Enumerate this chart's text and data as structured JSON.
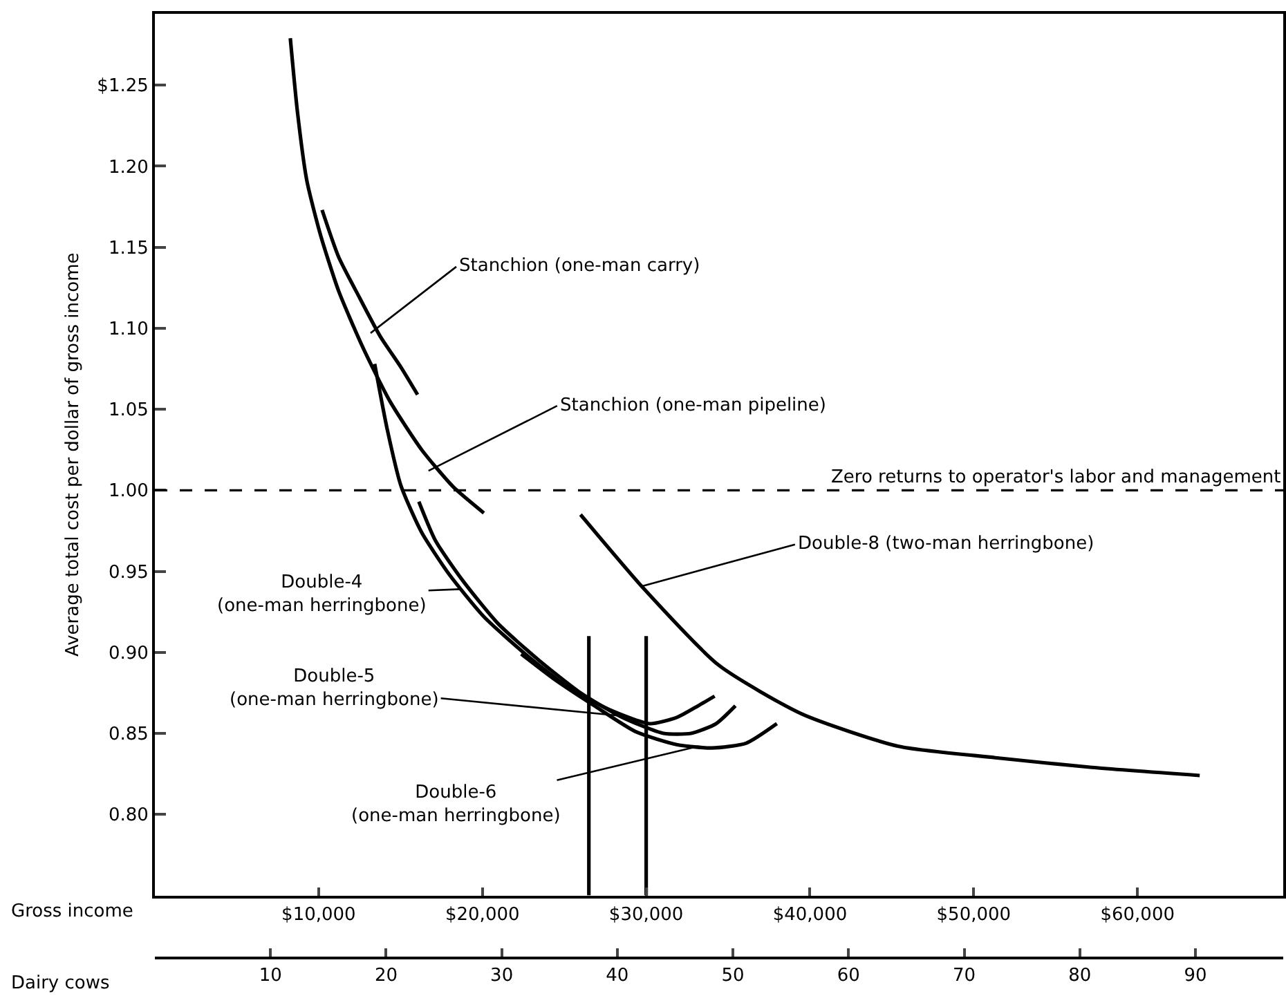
{
  "chart_data": {
    "type": "line",
    "xlabel": "Gross income",
    "x2label": "Dairy cows",
    "ylabel": "Average total cost per dollar of gross income",
    "xlim": [
      0,
      68900
    ],
    "xticks": [
      {
        "value": 10000,
        "label": "$10,000"
      },
      {
        "value": 20000,
        "label": "$20,000"
      },
      {
        "value": 30000,
        "label": "$30,000"
      },
      {
        "value": 40000,
        "label": "$40,000"
      },
      {
        "value": 50000,
        "label": "$50,000"
      },
      {
        "value": 60000,
        "label": "$60,000"
      }
    ],
    "x2lim": [
      0,
      97.6
    ],
    "x2ticks": [
      10,
      20,
      30,
      40,
      50,
      60,
      70,
      80,
      90
    ],
    "ylim": [
      0.75,
      1.294
    ],
    "yticks": [
      {
        "value": 0.8,
        "label": "0.80"
      },
      {
        "value": 0.85,
        "label": "0.85"
      },
      {
        "value": 0.9,
        "label": "0.90"
      },
      {
        "value": 0.95,
        "label": "0.95"
      },
      {
        "value": 1.0,
        "label": "1.00"
      },
      {
        "value": 1.05,
        "label": "1.05"
      },
      {
        "value": 1.1,
        "label": "1.10"
      },
      {
        "value": 1.15,
        "label": "1.15"
      },
      {
        "value": 1.2,
        "label": "1.20"
      },
      {
        "value": 1.25,
        "label": "$1.25"
      }
    ],
    "series": [
      {
        "color": "#000000",
        "x": [
          8270,
          8700,
          9280,
          10130,
          11220,
          12660,
          14350,
          16290,
          18230,
          20090
        ],
        "values": [
          1.279,
          1.234,
          1.191,
          1.157,
          1.123,
          1.089,
          1.055,
          1.025,
          1.002,
          0.986
        ]
      },
      {
        "color": "#000000",
        "x": [
          10210,
          11220,
          12490,
          13760,
          15020,
          16040
        ],
        "values": [
          1.173,
          1.144,
          1.119,
          1.095,
          1.076,
          1.059
        ]
      },
      {
        "color": "#000000",
        "x": [
          13420,
          14180,
          15020,
          16290,
          17980,
          20090,
          22620,
          25150,
          27680,
          30210,
          31900,
          33170,
          34180
        ],
        "values": [
          1.078,
          1.038,
          1.003,
          0.974,
          0.948,
          0.922,
          0.899,
          0.879,
          0.865,
          0.856,
          0.86,
          0.867,
          0.873
        ]
      },
      {
        "color": "#000000",
        "x": [
          16120,
          17130,
          18820,
          20930,
          23460,
          25990,
          28520,
          31060,
          32740,
          34270,
          35450
        ],
        "values": [
          0.993,
          0.969,
          0.944,
          0.918,
          0.895,
          0.875,
          0.86,
          0.85,
          0.85,
          0.856,
          0.867
        ]
      },
      {
        "color": "#000000",
        "x": [
          22370,
          24310,
          26840,
          29370,
          31900,
          34010,
          36120,
          37980
        ],
        "values": [
          0.899,
          0.884,
          0.867,
          0.851,
          0.843,
          0.841,
          0.844,
          0.856
        ]
      },
      {
        "color": "#000000",
        "x": [
          25990,
          29880,
          34440,
          39500,
          45410,
          51320,
          57220,
          63800
        ],
        "values": [
          0.985,
          0.939,
          0.892,
          0.862,
          0.842,
          0.835,
          0.829,
          0.824
        ]
      },
      {
        "color": "#000000",
        "x": [
          26500,
          26500
        ],
        "values": [
          0.75,
          0.91
        ]
      },
      {
        "color": "#000000",
        "x": [
          30000,
          30000
        ],
        "values": [
          0.75,
          0.91
        ]
      }
    ],
    "ref_lines": [
      {
        "axis": "y",
        "value": 1.0,
        "label": "Zero returns to operator's labor and management",
        "line_style": "dashed",
        "color": "#000000"
      }
    ],
    "annotations": [
      {
        "text": "Stanchion (one-man carry)",
        "x": 13170,
        "y": 1.097
      },
      {
        "text": "Stanchion (one-man pipeline)",
        "x": 16710,
        "y": 1.012
      },
      {
        "text": "Double-8 (two-man herringbone)",
        "x": 29800,
        "y": 0.941
      },
      {
        "text": "Double-4\n(one-man herringbone)",
        "x": 18650,
        "y": 0.939
      },
      {
        "text": "Double-5\n(one-man herringbone)",
        "x": 28270,
        "y": 0.861
      },
      {
        "text": "Double-6\n(one-man herringbone)",
        "x": 33170,
        "y": 0.842
      }
    ]
  }
}
